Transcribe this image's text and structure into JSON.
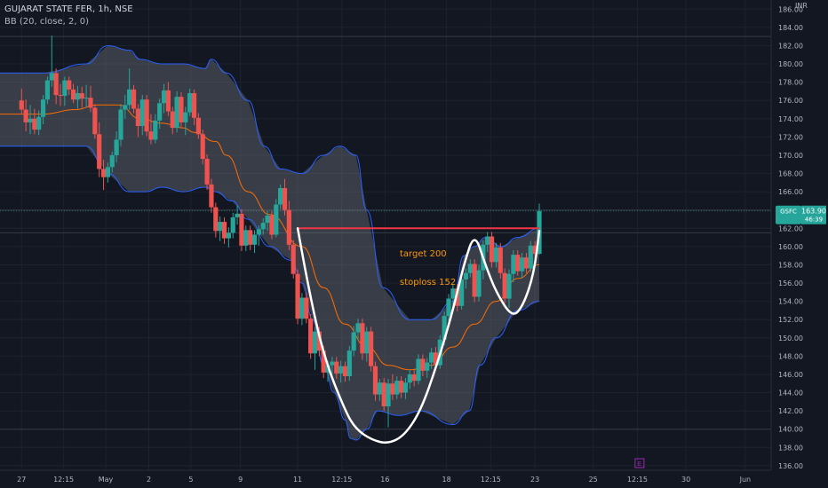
{
  "header": {
    "title": "GUJARAT STATE FER, 1h, NSE",
    "indicator": "BB (20, close, 2, 0)",
    "currency": "INR"
  },
  "chart_data": {
    "type": "candlestick",
    "symbol": "GSFC",
    "last_price": "163.90",
    "countdown": "46:39",
    "ylim": [
      135.5,
      187
    ],
    "y_ticks": [
      136,
      138,
      140,
      142,
      144,
      146,
      148,
      150,
      152,
      154,
      156,
      158,
      160,
      162,
      164,
      166,
      168,
      170,
      172,
      174,
      176,
      178,
      180,
      182,
      184,
      186
    ],
    "x_ticks": [
      {
        "label": "27",
        "x": 0
      },
      {
        "label": "12:15",
        "x": 3.9
      },
      {
        "label": "May",
        "x": 7.8
      },
      {
        "label": "2",
        "x": 11.8
      },
      {
        "label": "5",
        "x": 15.7
      },
      {
        "label": "9",
        "x": 20.3
      },
      {
        "label": "11",
        "x": 25.6
      },
      {
        "label": "12:15",
        "x": 29.7
      },
      {
        "label": "16",
        "x": 33.7
      },
      {
        "label": "18",
        "x": 39.4
      },
      {
        "label": "12:15",
        "x": 43.5
      },
      {
        "label": "23",
        "x": 47.6
      },
      {
        "label": "25",
        "x": 53.0
      },
      {
        "label": "12:15",
        "x": 57.1
      },
      {
        "label": "30",
        "x": 61.6
      },
      {
        "label": "Jun",
        "x": 67.1
      }
    ],
    "x_range": [
      -2,
      69.5
    ],
    "reference_levels": [
      183,
      164,
      161.5,
      140
    ],
    "bb_upper_x": [
      -2,
      2,
      6,
      8,
      10,
      11,
      13,
      15,
      17,
      17.6,
      19,
      21,
      22.5,
      24,
      26,
      28,
      29.5,
      31,
      32,
      33.5,
      36,
      38,
      40,
      41,
      42,
      43,
      44.5,
      46,
      48
    ],
    "bb_upper": [
      179,
      179,
      180,
      182,
      181.5,
      180.5,
      180,
      180,
      179.5,
      180.5,
      179,
      176,
      171,
      168.5,
      168,
      170,
      171,
      170,
      164,
      155.5,
      152,
      152,
      154,
      159,
      160,
      161,
      160,
      161,
      162
    ],
    "bb_lower_x": [
      -2,
      6,
      8,
      10,
      11.5,
      13,
      15,
      17,
      18,
      19.5,
      21,
      23,
      25,
      26,
      27,
      28,
      29,
      30,
      30.5,
      31,
      32,
      33,
      35,
      37,
      40,
      41.5,
      42.5,
      44,
      46,
      48
    ],
    "bb_lower": [
      171,
      171,
      168,
      166,
      166,
      166.5,
      166,
      166.5,
      166,
      165,
      163,
      160,
      158.5,
      156,
      152,
      147,
      144,
      141,
      139,
      138.8,
      140,
      142,
      141.5,
      142,
      140.5,
      142,
      147,
      150,
      153,
      154
    ],
    "ma_x": [
      -2,
      2,
      5,
      7,
      9,
      11,
      13,
      15,
      16,
      18,
      19,
      21,
      23,
      26,
      28,
      30,
      32,
      34,
      36,
      38,
      40,
      42,
      44,
      46,
      48
    ],
    "ma": [
      174.5,
      174.5,
      175,
      175.5,
      175.5,
      174,
      173.5,
      173,
      172.5,
      171.5,
      170,
      166,
      163.5,
      160,
      155.5,
      151.5,
      149,
      147,
      146.5,
      147,
      149,
      151.5,
      154,
      156.5,
      158
    ],
    "candles": [
      {
        "x": 0.0,
        "o": 176.0,
        "h": 177.3,
        "l": 174.5,
        "c": 175.0
      },
      {
        "x": 0.4,
        "o": 175.0,
        "h": 176.1,
        "l": 172.6,
        "c": 173.6
      },
      {
        "x": 0.8,
        "o": 173.6,
        "h": 175.5,
        "l": 172.3,
        "c": 174.0
      },
      {
        "x": 1.2,
        "o": 174.0,
        "h": 175.1,
        "l": 172.3,
        "c": 172.8
      },
      {
        "x": 1.6,
        "o": 172.8,
        "h": 174.9,
        "l": 172.2,
        "c": 174.2
      },
      {
        "x": 2.0,
        "o": 174.2,
        "h": 176.6,
        "l": 173.4,
        "c": 176.1
      },
      {
        "x": 2.4,
        "o": 176.1,
        "h": 178.6,
        "l": 175.6,
        "c": 178.2
      },
      {
        "x": 2.8,
        "o": 178.2,
        "h": 183.1,
        "l": 177.5,
        "c": 179.0
      },
      {
        "x": 3.2,
        "o": 179.0,
        "h": 179.5,
        "l": 175.6,
        "c": 176.6
      },
      {
        "x": 3.6,
        "o": 176.6,
        "h": 177.8,
        "l": 175.4,
        "c": 176.5
      },
      {
        "x": 4.0,
        "o": 176.5,
        "h": 178.6,
        "l": 175.4,
        "c": 178.2
      },
      {
        "x": 4.4,
        "o": 178.2,
        "h": 178.6,
        "l": 176.6,
        "c": 177.2
      },
      {
        "x": 4.8,
        "o": 177.2,
        "h": 177.8,
        "l": 175.7,
        "c": 176.1
      },
      {
        "x": 5.2,
        "o": 176.1,
        "h": 177.6,
        "l": 175.1,
        "c": 176.8
      },
      {
        "x": 5.6,
        "o": 176.8,
        "h": 177.5,
        "l": 175.2,
        "c": 176.2
      },
      {
        "x": 6.0,
        "o": 176.2,
        "h": 177.7,
        "l": 175.2,
        "c": 176.3
      },
      {
        "x": 6.4,
        "o": 176.3,
        "h": 177.6,
        "l": 174.7,
        "c": 175.2
      },
      {
        "x": 6.8,
        "o": 175.2,
        "h": 175.6,
        "l": 171.8,
        "c": 172.3
      },
      {
        "x": 7.2,
        "o": 172.3,
        "h": 173.6,
        "l": 167.6,
        "c": 168.5
      },
      {
        "x": 7.6,
        "o": 168.5,
        "h": 169.5,
        "l": 166.2,
        "c": 167.6
      },
      {
        "x": 8.0,
        "o": 167.6,
        "h": 169.2,
        "l": 167.0,
        "c": 168.7
      },
      {
        "x": 8.4,
        "o": 168.7,
        "h": 170.4,
        "l": 168.1,
        "c": 170.0
      },
      {
        "x": 8.8,
        "o": 170.0,
        "h": 172.6,
        "l": 169.2,
        "c": 171.7
      },
      {
        "x": 9.2,
        "o": 171.7,
        "h": 175.6,
        "l": 171.0,
        "c": 175.0
      },
      {
        "x": 9.6,
        "o": 175.0,
        "h": 176.6,
        "l": 174.0,
        "c": 175.5
      },
      {
        "x": 10.0,
        "o": 175.5,
        "h": 179.5,
        "l": 175.0,
        "c": 177.2
      },
      {
        "x": 10.4,
        "o": 177.2,
        "h": 177.7,
        "l": 174.6,
        "c": 175.1
      },
      {
        "x": 10.8,
        "o": 175.1,
        "h": 175.6,
        "l": 172.0,
        "c": 173.2
      },
      {
        "x": 11.2,
        "o": 173.2,
        "h": 176.6,
        "l": 172.2,
        "c": 176.1
      },
      {
        "x": 11.6,
        "o": 176.1,
        "h": 176.6,
        "l": 172.1,
        "c": 172.6
      },
      {
        "x": 12.0,
        "o": 172.6,
        "h": 174.5,
        "l": 171.2,
        "c": 171.7
      },
      {
        "x": 12.4,
        "o": 171.7,
        "h": 174.5,
        "l": 171.3,
        "c": 173.8
      },
      {
        "x": 12.8,
        "o": 173.8,
        "h": 176.2,
        "l": 172.9,
        "c": 175.7
      },
      {
        "x": 13.2,
        "o": 175.7,
        "h": 177.8,
        "l": 174.6,
        "c": 177.1
      },
      {
        "x": 13.6,
        "o": 177.1,
        "h": 178.0,
        "l": 174.3,
        "c": 174.8
      },
      {
        "x": 14.0,
        "o": 174.8,
        "h": 175.3,
        "l": 172.3,
        "c": 173.0
      },
      {
        "x": 14.4,
        "o": 173.0,
        "h": 177.0,
        "l": 172.5,
        "c": 176.4
      },
      {
        "x": 14.8,
        "o": 176.4,
        "h": 176.9,
        "l": 173.1,
        "c": 173.6
      },
      {
        "x": 15.2,
        "o": 173.6,
        "h": 175.3,
        "l": 172.2,
        "c": 174.7
      },
      {
        "x": 15.6,
        "o": 174.7,
        "h": 177.3,
        "l": 174.3,
        "c": 176.8
      },
      {
        "x": 16.0,
        "o": 176.8,
        "h": 177.2,
        "l": 173.3,
        "c": 174.1
      },
      {
        "x": 16.4,
        "o": 174.1,
        "h": 174.6,
        "l": 171.8,
        "c": 172.3
      },
      {
        "x": 16.8,
        "o": 172.3,
        "h": 172.8,
        "l": 169.0,
        "c": 169.6
      },
      {
        "x": 17.2,
        "o": 169.6,
        "h": 170.1,
        "l": 166.2,
        "c": 166.8
      },
      {
        "x": 17.6,
        "o": 166.8,
        "h": 167.4,
        "l": 163.7,
        "c": 164.3
      },
      {
        "x": 18.0,
        "o": 164.3,
        "h": 164.8,
        "l": 161.0,
        "c": 161.7
      },
      {
        "x": 18.4,
        "o": 161.7,
        "h": 163.3,
        "l": 160.6,
        "c": 162.7
      },
      {
        "x": 18.8,
        "o": 162.7,
        "h": 163.2,
        "l": 160.3,
        "c": 160.9
      },
      {
        "x": 19.2,
        "o": 160.9,
        "h": 162.1,
        "l": 159.9,
        "c": 161.5
      },
      {
        "x": 19.6,
        "o": 161.5,
        "h": 163.7,
        "l": 160.9,
        "c": 163.2
      },
      {
        "x": 20.0,
        "o": 163.2,
        "h": 164.5,
        "l": 162.4,
        "c": 163.6
      },
      {
        "x": 20.4,
        "o": 163.6,
        "h": 164.1,
        "l": 159.5,
        "c": 160.1
      },
      {
        "x": 20.8,
        "o": 160.1,
        "h": 162.3,
        "l": 159.5,
        "c": 161.8
      },
      {
        "x": 21.2,
        "o": 161.8,
        "h": 162.3,
        "l": 159.6,
        "c": 160.2
      },
      {
        "x": 21.6,
        "o": 160.2,
        "h": 161.8,
        "l": 159.3,
        "c": 161.3
      },
      {
        "x": 22.0,
        "o": 161.3,
        "h": 162.3,
        "l": 160.1,
        "c": 161.9
      },
      {
        "x": 22.4,
        "o": 161.9,
        "h": 163.1,
        "l": 161.3,
        "c": 162.6
      },
      {
        "x": 22.8,
        "o": 162.6,
        "h": 163.9,
        "l": 161.7,
        "c": 163.4
      },
      {
        "x": 23.2,
        "o": 163.4,
        "h": 163.9,
        "l": 160.8,
        "c": 161.3
      },
      {
        "x": 23.6,
        "o": 161.3,
        "h": 165.2,
        "l": 161.0,
        "c": 164.6
      },
      {
        "x": 24.0,
        "o": 164.6,
        "h": 166.8,
        "l": 164.1,
        "c": 166.4
      },
      {
        "x": 24.4,
        "o": 166.4,
        "h": 167.4,
        "l": 163.4,
        "c": 164.0
      },
      {
        "x": 24.8,
        "o": 164.0,
        "h": 165.0,
        "l": 159.6,
        "c": 160.2
      },
      {
        "x": 25.2,
        "o": 160.2,
        "h": 160.7,
        "l": 156.5,
        "c": 157.0
      },
      {
        "x": 25.6,
        "o": 157.0,
        "h": 157.5,
        "l": 151.5,
        "c": 152.1
      },
      {
        "x": 26.0,
        "o": 152.1,
        "h": 154.9,
        "l": 151.4,
        "c": 154.4
      },
      {
        "x": 26.4,
        "o": 154.4,
        "h": 154.9,
        "l": 151.6,
        "c": 152.1
      },
      {
        "x": 26.8,
        "o": 152.1,
        "h": 152.6,
        "l": 147.7,
        "c": 148.3
      },
      {
        "x": 27.2,
        "o": 148.3,
        "h": 151.2,
        "l": 146.5,
        "c": 150.7
      },
      {
        "x": 27.6,
        "o": 150.7,
        "h": 151.2,
        "l": 148.0,
        "c": 148.6
      },
      {
        "x": 28.0,
        "o": 148.6,
        "h": 149.1,
        "l": 145.6,
        "c": 146.2
      },
      {
        "x": 28.4,
        "o": 146.2,
        "h": 147.5,
        "l": 145.2,
        "c": 147.0
      },
      {
        "x": 28.8,
        "o": 147.0,
        "h": 147.9,
        "l": 146.0,
        "c": 147.4
      },
      {
        "x": 29.2,
        "o": 147.4,
        "h": 147.9,
        "l": 145.5,
        "c": 146.1
      },
      {
        "x": 29.6,
        "o": 146.1,
        "h": 147.5,
        "l": 145.1,
        "c": 146.9
      },
      {
        "x": 30.0,
        "o": 146.9,
        "h": 147.4,
        "l": 145.2,
        "c": 145.8
      },
      {
        "x": 30.4,
        "o": 145.8,
        "h": 149.1,
        "l": 145.3,
        "c": 148.6
      },
      {
        "x": 30.8,
        "o": 148.6,
        "h": 151.3,
        "l": 148.0,
        "c": 150.6
      },
      {
        "x": 31.2,
        "o": 150.6,
        "h": 152.1,
        "l": 149.8,
        "c": 151.6
      },
      {
        "x": 31.6,
        "o": 151.6,
        "h": 152.1,
        "l": 147.6,
        "c": 148.3
      },
      {
        "x": 32.0,
        "o": 148.3,
        "h": 151.2,
        "l": 147.4,
        "c": 150.7
      },
      {
        "x": 32.4,
        "o": 150.7,
        "h": 151.2,
        "l": 146.3,
        "c": 146.9
      },
      {
        "x": 32.8,
        "o": 146.9,
        "h": 147.4,
        "l": 143.1,
        "c": 143.8
      },
      {
        "x": 33.2,
        "o": 143.8,
        "h": 145.5,
        "l": 143.1,
        "c": 145.1
      },
      {
        "x": 33.6,
        "o": 145.1,
        "h": 145.6,
        "l": 142.0,
        "c": 142.5
      },
      {
        "x": 34.0,
        "o": 142.5,
        "h": 145.5,
        "l": 140.2,
        "c": 145.0
      },
      {
        "x": 34.4,
        "o": 145.0,
        "h": 146.0,
        "l": 143.2,
        "c": 143.8
      },
      {
        "x": 34.8,
        "o": 143.8,
        "h": 145.8,
        "l": 143.3,
        "c": 145.3
      },
      {
        "x": 35.2,
        "o": 145.3,
        "h": 145.8,
        "l": 143.4,
        "c": 144.0
      },
      {
        "x": 35.6,
        "o": 144.0,
        "h": 145.6,
        "l": 143.3,
        "c": 145.1
      },
      {
        "x": 36.0,
        "o": 145.1,
        "h": 146.5,
        "l": 144.4,
        "c": 146.0
      },
      {
        "x": 36.4,
        "o": 146.0,
        "h": 146.5,
        "l": 144.7,
        "c": 145.3
      },
      {
        "x": 36.8,
        "o": 145.3,
        "h": 148.2,
        "l": 144.9,
        "c": 147.7
      },
      {
        "x": 37.2,
        "o": 147.7,
        "h": 148.2,
        "l": 145.8,
        "c": 146.4
      },
      {
        "x": 37.6,
        "o": 146.4,
        "h": 147.8,
        "l": 145.6,
        "c": 147.3
      },
      {
        "x": 38.0,
        "o": 147.3,
        "h": 148.9,
        "l": 146.6,
        "c": 148.4
      },
      {
        "x": 38.4,
        "o": 148.4,
        "h": 149.0,
        "l": 146.4,
        "c": 147.0
      },
      {
        "x": 38.8,
        "o": 147.0,
        "h": 150.3,
        "l": 146.6,
        "c": 149.8
      },
      {
        "x": 39.2,
        "o": 149.8,
        "h": 152.9,
        "l": 149.2,
        "c": 152.4
      },
      {
        "x": 39.6,
        "o": 152.4,
        "h": 154.8,
        "l": 151.6,
        "c": 154.3
      },
      {
        "x": 40.0,
        "o": 154.3,
        "h": 155.9,
        "l": 153.3,
        "c": 155.4
      },
      {
        "x": 40.4,
        "o": 155.4,
        "h": 155.9,
        "l": 152.9,
        "c": 153.5
      },
      {
        "x": 40.8,
        "o": 153.5,
        "h": 156.9,
        "l": 153.1,
        "c": 156.4
      },
      {
        "x": 41.2,
        "o": 156.4,
        "h": 157.6,
        "l": 155.4,
        "c": 157.1
      },
      {
        "x": 41.6,
        "o": 157.1,
        "h": 158.6,
        "l": 156.6,
        "c": 158.1
      },
      {
        "x": 42.0,
        "o": 158.1,
        "h": 158.6,
        "l": 153.9,
        "c": 154.5
      },
      {
        "x": 42.4,
        "o": 154.5,
        "h": 158.0,
        "l": 154.0,
        "c": 157.4
      },
      {
        "x": 42.8,
        "o": 157.4,
        "h": 160.7,
        "l": 156.4,
        "c": 160.2
      },
      {
        "x": 43.2,
        "o": 160.2,
        "h": 161.6,
        "l": 159.4,
        "c": 161.1
      },
      {
        "x": 43.6,
        "o": 161.1,
        "h": 161.6,
        "l": 157.7,
        "c": 158.3
      },
      {
        "x": 44.0,
        "o": 158.3,
        "h": 160.4,
        "l": 157.7,
        "c": 159.9
      },
      {
        "x": 44.4,
        "o": 159.9,
        "h": 160.4,
        "l": 156.5,
        "c": 157.1
      },
      {
        "x": 44.8,
        "o": 157.1,
        "h": 157.6,
        "l": 153.8,
        "c": 154.3
      },
      {
        "x": 45.2,
        "o": 154.3,
        "h": 157.5,
        "l": 153.3,
        "c": 157.0
      },
      {
        "x": 45.6,
        "o": 157.0,
        "h": 159.6,
        "l": 156.1,
        "c": 159.1
      },
      {
        "x": 46.0,
        "o": 159.1,
        "h": 159.6,
        "l": 156.8,
        "c": 157.3
      },
      {
        "x": 46.4,
        "o": 157.3,
        "h": 159.3,
        "l": 156.5,
        "c": 158.8
      },
      {
        "x": 46.8,
        "o": 158.8,
        "h": 159.3,
        "l": 157.1,
        "c": 157.6
      },
      {
        "x": 47.2,
        "o": 157.6,
        "h": 160.6,
        "l": 157.2,
        "c": 160.1
      },
      {
        "x": 47.6,
        "o": 160.1,
        "h": 160.6,
        "l": 158.6,
        "c": 159.2
      },
      {
        "x": 48.0,
        "o": 159.2,
        "h": 164.7,
        "l": 159.1,
        "c": 163.9
      }
    ],
    "annotations": {
      "target_label": "target 200",
      "stoploss_label": "stoploss 152",
      "resistance_level": 162,
      "resistance_x": [
        25.6,
        48.0
      ],
      "cup_handle_path": [
        [
          25.6,
          162
        ],
        [
          26.5,
          156
        ],
        [
          28,
          148
        ],
        [
          30,
          142
        ],
        [
          31,
          140
        ],
        [
          32.5,
          138.8
        ],
        [
          34,
          138.4
        ],
        [
          35.5,
          139.3
        ],
        [
          37,
          142
        ],
        [
          38.5,
          147
        ],
        [
          40,
          153
        ],
        [
          41,
          158
        ],
        [
          42,
          161.6
        ],
        [
          43,
          158
        ],
        [
          44,
          155
        ],
        [
          45.5,
          152.2
        ],
        [
          46.5,
          153.5
        ],
        [
          47.5,
          157
        ],
        [
          48,
          161.7
        ]
      ]
    },
    "event_marker": {
      "label": "E",
      "x": 57.3
    },
    "colors": {
      "up": "#26a69a",
      "down": "#ef5350",
      "band_line": "#2962ff",
      "band_fill": "#787b86",
      "basis": "#ff6d00",
      "resistance": "#f23645",
      "pattern": "#ffffff",
      "annotation_text": "#ff9800",
      "price_badge": "#26a69a",
      "event_marker": "#9c27b0",
      "background": "#131722",
      "grid": "#1e222d",
      "axis_text": "#b2b5be"
    }
  }
}
